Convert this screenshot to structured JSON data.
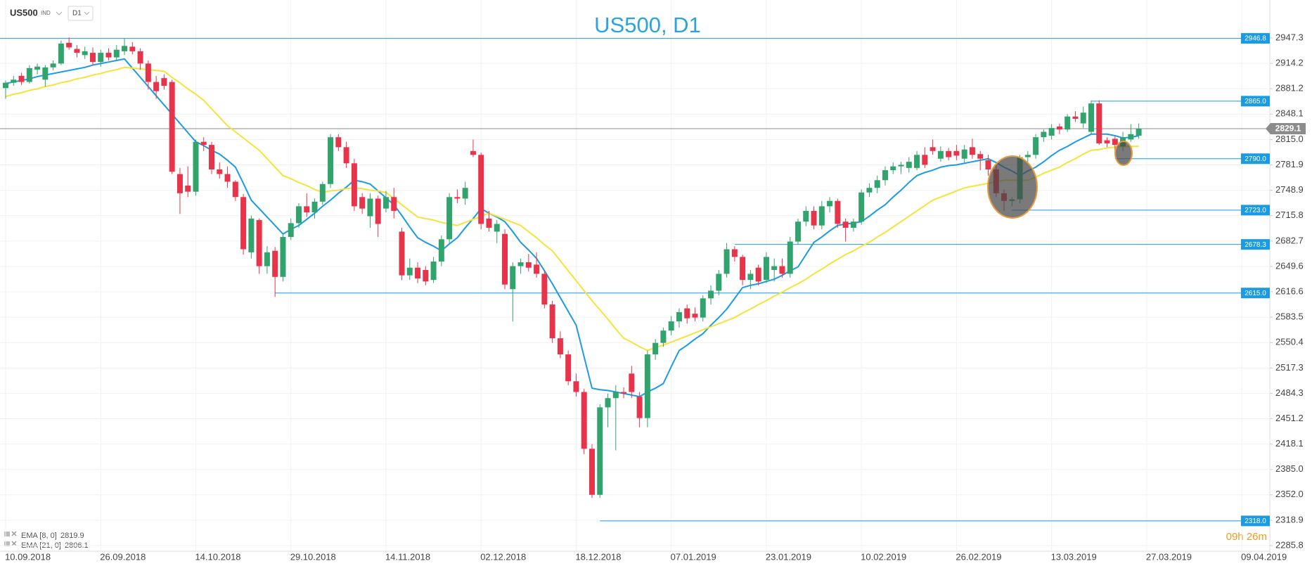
{
  "header": {
    "symbol": "US500",
    "market": "IND",
    "timeframe": "D1"
  },
  "chart_data": {
    "type": "candlestick",
    "title": "US500, D1",
    "categories": [
      "10.09.2018",
      null,
      null,
      null,
      null,
      null,
      null,
      null,
      null,
      null,
      null,
      null,
      "26.09.2018",
      null,
      null,
      null,
      null,
      null,
      null,
      null,
      null,
      null,
      null,
      null,
      "14.10.2018",
      null,
      null,
      null,
      null,
      null,
      null,
      null,
      null,
      null,
      null,
      null,
      "29.10.2018",
      null,
      null,
      null,
      null,
      null,
      null,
      null,
      null,
      null,
      null,
      null,
      "14.11.2018",
      null,
      null,
      null,
      null,
      null,
      null,
      null,
      null,
      null,
      null,
      null,
      "02.12.2018",
      null,
      null,
      null,
      null,
      null,
      null,
      null,
      null,
      null,
      null,
      null,
      "18.12.2018",
      null,
      null,
      null,
      null,
      null,
      null,
      null,
      null,
      null,
      null,
      null,
      "07.01.2019",
      null,
      null,
      null,
      null,
      null,
      null,
      null,
      null,
      null,
      null,
      null,
      "23.01.2019",
      null,
      null,
      null,
      null,
      null,
      null,
      null,
      null,
      null,
      null,
      null,
      "10.02.2019",
      null,
      null,
      null,
      null,
      null,
      null,
      null,
      null,
      null,
      null,
      null,
      "26.02.2019",
      null,
      null,
      null,
      null,
      null,
      null,
      null,
      null,
      null,
      null,
      null,
      "13.03.2019",
      null,
      null,
      null,
      null,
      null,
      null,
      null,
      null,
      null,
      null,
      null,
      "27.03.2019",
      null,
      null,
      null,
      null,
      null,
      null,
      null,
      null,
      null,
      null,
      null,
      "09.04.2019"
    ],
    "open": [
      2882,
      2889,
      2898,
      2890,
      2906,
      2893,
      2909,
      2914,
      2941,
      2933,
      2925,
      2928,
      2916,
      2928,
      2922,
      2930,
      2936,
      2930,
      2914,
      2890,
      2895,
      2890,
      2770,
      2755,
      2747,
      2812,
      2808,
      2776,
      2770,
      2760,
      2740,
      2668,
      2710,
      2650,
      2670,
      2636,
      2688,
      2706,
      2728,
      2720,
      2734,
      2757,
      2818,
      2805,
      2784,
      2740,
      2715,
      2738,
      2725,
      2740,
      2695,
      2638,
      2648,
      2645,
      2632,
      2656,
      2685,
      2740,
      2738,
      2800,
      2795,
      2712,
      2695,
      2692,
      2620,
      2650,
      2655,
      2652,
      2640,
      2600,
      2556,
      2535,
      2500,
      2486,
      2412,
      2352,
      2466,
      2478,
      2486,
      2510,
      2480,
      2452,
      2535,
      2550,
      2566,
      2578,
      2595,
      2588,
      2583,
      2608,
      2618,
      2640,
      2672,
      2662,
      2632,
      2648,
      2632,
      2645,
      2650,
      2640,
      2682,
      2708,
      2722,
      2703,
      2728,
      2735,
      2708,
      2700,
      2708,
      2746,
      2752,
      2762,
      2775,
      2780,
      2778,
      2778,
      2795,
      2805,
      2790,
      2800,
      2800,
      2790,
      2805,
      2796,
      2788,
      2776,
      2745,
      2735,
      2737,
      2792,
      2795,
      2818,
      2820,
      2832,
      2828,
      2845,
      2836,
      2825,
      2862,
      2814,
      2816,
      2806,
      2815,
      2820,
      null,
      null,
      null,
      null,
      null,
      null,
      null,
      null,
      null,
      null,
      null,
      null,
      null
    ],
    "high": [
      2892,
      2898,
      2902,
      2912,
      2914,
      2912,
      2918,
      2944,
      2948,
      2938,
      2936,
      2935,
      2932,
      2934,
      2938,
      2947,
      2942,
      2934,
      2918,
      2898,
      2900,
      2893,
      2778,
      2780,
      2815,
      2818,
      2812,
      2785,
      2780,
      2762,
      2744,
      2716,
      2712,
      2676,
      2675,
      2692,
      2712,
      2732,
      2745,
      2738,
      2760,
      2822,
      2822,
      2812,
      2790,
      2745,
      2745,
      2742,
      2748,
      2752,
      2700,
      2660,
      2655,
      2650,
      2662,
      2690,
      2745,
      2750,
      2760,
      2815,
      2798,
      2722,
      2710,
      2698,
      2655,
      2660,
      2666,
      2668,
      2645,
      2605,
      2565,
      2540,
      2510,
      2490,
      2418,
      2470,
      2484,
      2495,
      2492,
      2520,
      2486,
      2540,
      2555,
      2570,
      2585,
      2595,
      2600,
      2596,
      2612,
      2625,
      2645,
      2680,
      2676,
      2665,
      2645,
      2652,
      2668,
      2660,
      2660,
      2688,
      2712,
      2728,
      2728,
      2735,
      2740,
      2738,
      2712,
      2712,
      2750,
      2758,
      2768,
      2780,
      2785,
      2786,
      2792,
      2800,
      2805,
      2815,
      2806,
      2804,
      2808,
      2808,
      2816,
      2800,
      2795,
      2782,
      2750,
      2740,
      2795,
      2800,
      2822,
      2828,
      2835,
      2836,
      2848,
      2852,
      2858,
      2866,
      2866,
      2818,
      2820,
      2825,
      2835,
      2836,
      null,
      null,
      null,
      null,
      null,
      null,
      null,
      null,
      null,
      null,
      null,
      null,
      null
    ],
    "low": [
      2868,
      2885,
      2886,
      2888,
      2900,
      2884,
      2905,
      2912,
      2932,
      2922,
      2920,
      2912,
      2910,
      2918,
      2918,
      2925,
      2926,
      2906,
      2880,
      2868,
      2880,
      2770,
      2718,
      2740,
      2742,
      2800,
      2770,
      2764,
      2752,
      2735,
      2665,
      2660,
      2640,
      2640,
      2610,
      2630,
      2684,
      2700,
      2714,
      2712,
      2730,
      2752,
      2800,
      2778,
      2722,
      2718,
      2700,
      2688,
      2720,
      2712,
      2632,
      2632,
      2628,
      2625,
      2628,
      2650,
      2680,
      2732,
      2730,
      2792,
      2698,
      2695,
      2680,
      2620,
      2578,
      2640,
      2643,
      2635,
      2595,
      2550,
      2530,
      2495,
      2480,
      2405,
      2348,
      2348,
      2440,
      2410,
      2478,
      2478,
      2440,
      2440,
      2528,
      2545,
      2560,
      2570,
      2575,
      2578,
      2578,
      2600,
      2612,
      2635,
      2656,
      2625,
      2620,
      2625,
      2628,
      2630,
      2635,
      2635,
      2678,
      2702,
      2698,
      2698,
      2720,
      2700,
      2682,
      2695,
      2704,
      2740,
      2745,
      2755,
      2770,
      2770,
      2772,
      2775,
      2778,
      2795,
      2786,
      2788,
      2788,
      2785,
      2790,
      2775,
      2768,
      2740,
      2722,
      2728,
      2732,
      2785,
      2790,
      2812,
      2815,
      2822,
      2825,
      2838,
      2830,
      2822,
      2808,
      2805,
      2795,
      2800,
      2812,
      2816,
      null,
      null,
      null,
      null,
      null,
      null,
      null,
      null,
      null,
      null,
      null,
      null,
      null
    ],
    "close": [
      2889,
      2893,
      2890,
      2908,
      2910,
      2909,
      2914,
      2940,
      2935,
      2928,
      2930,
      2916,
      2928,
      2922,
      2932,
      2937,
      2930,
      2914,
      2890,
      2878,
      2885,
      2773,
      2745,
      2747,
      2812,
      2808,
      2776,
      2770,
      2760,
      2740,
      2672,
      2712,
      2650,
      2668,
      2636,
      2688,
      2706,
      2728,
      2720,
      2734,
      2757,
      2818,
      2805,
      2784,
      2728,
      2725,
      2738,
      2705,
      2740,
      2722,
      2638,
      2648,
      2634,
      2630,
      2656,
      2685,
      2740,
      2738,
      2752,
      2795,
      2705,
      2700,
      2705,
      2626,
      2650,
      2655,
      2648,
      2640,
      2600,
      2556,
      2535,
      2500,
      2486,
      2412,
      2352,
      2466,
      2478,
      2486,
      2484,
      2486,
      2452,
      2535,
      2550,
      2566,
      2578,
      2590,
      2582,
      2583,
      2608,
      2618,
      2640,
      2672,
      2662,
      2632,
      2640,
      2630,
      2662,
      2650,
      2640,
      2682,
      2708,
      2722,
      2703,
      2728,
      2735,
      2705,
      2700,
      2708,
      2746,
      2752,
      2762,
      2775,
      2780,
      2782,
      2786,
      2795,
      2782,
      2800,
      2800,
      2792,
      2794,
      2802,
      2795,
      2790,
      2776,
      2745,
      2735,
      2737,
      2792,
      2795,
      2818,
      2825,
      2830,
      2828,
      2845,
      2842,
      2850,
      2862,
      2810,
      2810,
      2808,
      2818,
      2822,
      2829.1,
      null,
      null,
      null,
      null,
      null,
      null,
      null,
      null,
      null,
      null,
      null,
      null,
      null
    ],
    "up_color": "#30a46c",
    "down_color": "#e8344a",
    "series": [
      {
        "name": "EMA [8, 0]",
        "value": 2819.9,
        "color": "#1b9be3",
        "values": [
          2888,
          2890,
          2892,
          2894,
          2897,
          2899,
          2901,
          2903,
          2905,
          2907,
          2909,
          2912,
          2914,
          2916,
          2918,
          2920,
          2908,
          2896,
          2884,
          2872,
          2860,
          2848,
          2836,
          2824,
          2812,
          2807,
          2801,
          2796,
          2788,
          2779,
          2758,
          2736,
          2725,
          2714,
          2703,
          2692,
          2698,
          2703,
          2711,
          2719,
          2728,
          2736,
          2745,
          2753,
          2762,
          2760,
          2757,
          2748,
          2739,
          2730,
          2716,
          2701,
          2687,
          2681,
          2676,
          2670,
          2679,
          2687,
          2700,
          2712,
          2725,
          2719,
          2714,
          2708,
          2695,
          2681,
          2671,
          2660,
          2644,
          2627,
          2609,
          2591,
          2573,
          2532,
          2491,
          2489,
          2488,
          2486,
          2484,
          2482,
          2480,
          2486,
          2491,
          2497,
          2519,
          2540,
          2547,
          2555,
          2562,
          2573,
          2583,
          2594,
          2608,
          2622,
          2625,
          2627,
          2630,
          2633,
          2638,
          2644,
          2649,
          2665,
          2681,
          2688,
          2696,
          2703,
          2705,
          2706,
          2708,
          2715,
          2723,
          2730,
          2740,
          2749,
          2759,
          2768,
          2772,
          2775,
          2779,
          2781,
          2782,
          2784,
          2786,
          2788,
          2790,
          2785,
          2779,
          2774,
          2768,
          2774,
          2779,
          2786,
          2794,
          2801,
          2806,
          2812,
          2817,
          2822,
          2822,
          2822,
          2820,
          2817,
          2818,
          2819.9,
          null,
          null,
          null,
          null,
          null,
          null,
          null,
          null,
          null,
          null,
          null,
          null,
          null
        ]
      },
      {
        "name": "EMA [21, 0]",
        "value": 2806.1,
        "color": "#f7e23a",
        "values": [
          2871,
          2874,
          2876,
          2879,
          2881,
          2884,
          2886,
          2889,
          2891,
          2894,
          2896,
          2899,
          2901,
          2904,
          2906,
          2909,
          2908,
          2907,
          2906,
          2905,
          2904,
          2896,
          2889,
          2881,
          2874,
          2866,
          2855,
          2844,
          2833,
          2825,
          2817,
          2809,
          2801,
          2790,
          2779,
          2768,
          2764,
          2759,
          2755,
          2750,
          2746,
          2748,
          2749,
          2751,
          2752,
          2751,
          2749,
          2748,
          2746,
          2738,
          2730,
          2722,
          2714,
          2712,
          2710,
          2707,
          2705,
          2703,
          2707,
          2711,
          2715,
          2719,
          2715,
          2711,
          2707,
          2703,
          2695,
          2687,
          2678,
          2670,
          2657,
          2644,
          2631,
          2618,
          2605,
          2593,
          2581,
          2568,
          2556,
          2551,
          2545,
          2540,
          2544,
          2547,
          2551,
          2555,
          2559,
          2563,
          2567,
          2571,
          2575,
          2579,
          2583,
          2589,
          2594,
          2600,
          2605,
          2611,
          2616,
          2622,
          2627,
          2633,
          2640,
          2646,
          2653,
          2659,
          2665,
          2670,
          2676,
          2681,
          2688,
          2694,
          2701,
          2708,
          2715,
          2722,
          2729,
          2736,
          2740,
          2744,
          2748,
          2752,
          2754,
          2756,
          2758,
          2760,
          2762,
          2762,
          2762,
          2762,
          2766,
          2771,
          2775,
          2779,
          2785,
          2790,
          2796,
          2801,
          2802,
          2804,
          2805,
          2806,
          2806,
          2806.1,
          null,
          null,
          null,
          null,
          null,
          null,
          null,
          null,
          null,
          null,
          null,
          null,
          null
        ]
      }
    ],
    "ylim": [
      2278.5,
      2996.8
    ],
    "yticks": [
      2947.3,
      2914.2,
      2881.2,
      2848.1,
      {
        "value": 2815,
        "label": "2815.0"
      },
      2781.9,
      2748.9,
      2715.8,
      2682.7,
      2649.6,
      2616.6,
      2583.5,
      2550.4,
      2517.3,
      2484.3,
      2451.2,
      2418.1,
      {
        "value": 2385,
        "label": "2385.0"
      },
      {
        "value": 2352,
        "label": "2352.0"
      },
      2318.9,
      2285.8
    ],
    "grid": true,
    "levels": [
      2946.8,
      {
        "value": 2865,
        "label": "2865.0"
      },
      {
        "value": 2790,
        "label": "2790.0"
      },
      {
        "value": 2723,
        "label": "2723.0"
      },
      2678.3,
      {
        "value": 2615,
        "label": "2615.0"
      },
      {
        "value": 2318,
        "label": "2318.0"
      }
    ],
    "level_color": "#1b9be3",
    "last_price": 2829.1,
    "last_price_color": "#8c8c8c",
    "countdown": "09h 26m"
  }
}
